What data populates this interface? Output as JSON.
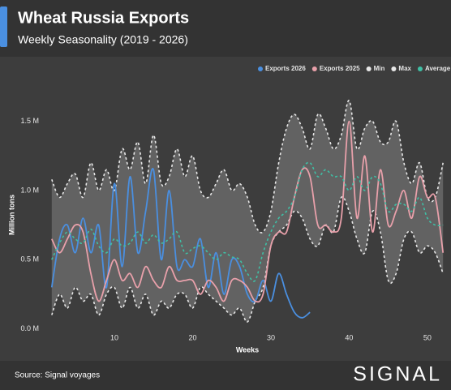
{
  "chart_data": {
    "type": "line",
    "title": "Wheat Russia Exports",
    "subtitle": "Weekly Seasonality (2019 - 2026)",
    "x_label": "Weeks",
    "y_label": "Million tons",
    "source": "Source: Signal voyages",
    "logo": "SIGNAL",
    "x": [
      2,
      3,
      4,
      5,
      6,
      7,
      8,
      9,
      10,
      11,
      12,
      13,
      14,
      15,
      16,
      17,
      18,
      19,
      20,
      21,
      22,
      23,
      24,
      25,
      26,
      27,
      28,
      29,
      30,
      31,
      32,
      33,
      34,
      35,
      36,
      37,
      38,
      39,
      40,
      41,
      42,
      43,
      44,
      45,
      46,
      47,
      48,
      49,
      50,
      51,
      52
    ],
    "xlim": [
      1.4,
      52.6
    ],
    "xticks": [
      10,
      20,
      30,
      40,
      50
    ],
    "ylim": [
      -0.02,
      1.65
    ],
    "yticks": [
      {
        "value": 0,
        "label": "0.0 M"
      },
      {
        "value": 0.5,
        "label": "0.5 M"
      },
      {
        "value": 1,
        "label": "1.0 M"
      },
      {
        "value": 1.5,
        "label": "1.5 M"
      }
    ],
    "grid": false,
    "range_fill": "#626262",
    "series": [
      {
        "name": "Exports 2026",
        "color": "#4a8fe0",
        "dashed": false,
        "values": [
          0.3,
          0.65,
          0.75,
          0.55,
          0.8,
          0.55,
          0.75,
          0.3,
          1.05,
          0.45,
          1.1,
          0.55,
          0.85,
          1.15,
          0.5,
          1.0,
          0.45,
          0.5,
          0.45,
          0.65,
          0.3,
          0.55,
          0.25,
          0.5,
          0.45,
          0.25,
          0.2,
          0.35,
          0.2,
          0.4,
          0.25,
          0.12,
          0.08,
          0.12,
          null,
          null,
          null,
          null,
          null,
          null,
          null,
          null,
          null,
          null,
          null,
          null,
          null,
          null,
          null,
          null,
          null
        ]
      },
      {
        "name": "Exports 2025",
        "color": "#e8a0aa",
        "dashed": false,
        "values": [
          0.65,
          0.55,
          0.65,
          0.75,
          0.7,
          0.4,
          0.2,
          0.35,
          0.5,
          0.35,
          0.4,
          0.3,
          0.45,
          0.35,
          0.3,
          0.45,
          0.35,
          0.35,
          0.35,
          0.25,
          0.35,
          0.3,
          0.2,
          0.35,
          0.35,
          0.3,
          0.2,
          0.25,
          0.6,
          0.7,
          0.7,
          0.95,
          1.15,
          1.1,
          0.75,
          0.75,
          0.7,
          0.8,
          1.5,
          0.8,
          1.25,
          0.7,
          1.15,
          0.75,
          0.85,
          1.0,
          0.8,
          1.1,
          0.95,
          0.95,
          0.55
        ]
      },
      {
        "name": "Min",
        "color": "#e8e8e8",
        "dashed": true,
        "values": [
          0.1,
          0.25,
          0.15,
          0.3,
          0.2,
          0.25,
          0.1,
          0.25,
          0.3,
          0.15,
          0.3,
          0.15,
          0.25,
          0.1,
          0.2,
          0.15,
          0.25,
          0.25,
          0.15,
          0.3,
          0.25,
          0.2,
          0.15,
          0.1,
          0.15,
          0.05,
          0.2,
          0.3,
          0.6,
          0.7,
          0.75,
          0.85,
          0.8,
          0.65,
          0.6,
          0.75,
          0.7,
          0.95,
          0.85,
          0.65,
          0.55,
          0.85,
          0.7,
          0.35,
          0.4,
          0.65,
          0.7,
          0.55,
          0.6,
          0.55,
          0.4
        ]
      },
      {
        "name": "Max",
        "color": "#e8e8e8",
        "dashed": true,
        "values": [
          1.08,
          0.95,
          1.05,
          1.12,
          0.95,
          1.2,
          1.0,
          1.15,
          1.0,
          1.3,
          1.15,
          1.35,
          1.05,
          1.4,
          1.05,
          1.1,
          1.3,
          1.1,
          1.25,
          1.0,
          0.95,
          1.05,
          1.15,
          1.0,
          1.05,
          0.95,
          0.75,
          0.7,
          0.85,
          1.2,
          1.45,
          1.55,
          1.45,
          1.3,
          1.55,
          1.45,
          1.3,
          1.4,
          1.65,
          1.3,
          1.45,
          1.5,
          1.35,
          1.35,
          1.5,
          1.2,
          1.05,
          1.2,
          0.95,
          0.95,
          1.2
        ]
      },
      {
        "name": "Average",
        "color": "#3fbfa5",
        "dashed": true,
        "values": [
          0.5,
          0.62,
          0.7,
          0.65,
          0.62,
          0.72,
          0.6,
          0.55,
          0.65,
          0.6,
          0.62,
          0.7,
          0.62,
          0.68,
          0.62,
          0.65,
          0.7,
          0.55,
          0.58,
          0.6,
          0.55,
          0.5,
          0.55,
          0.52,
          0.5,
          0.4,
          0.35,
          0.55,
          0.7,
          0.8,
          0.85,
          0.95,
          1.15,
          1.2,
          1.1,
          1.15,
          1.1,
          1.1,
          1.0,
          1.1,
          1.0,
          1.1,
          1.05,
          0.85,
          0.9,
          0.9,
          0.85,
          0.95,
          0.8,
          0.75,
          0.75
        ]
      }
    ]
  }
}
